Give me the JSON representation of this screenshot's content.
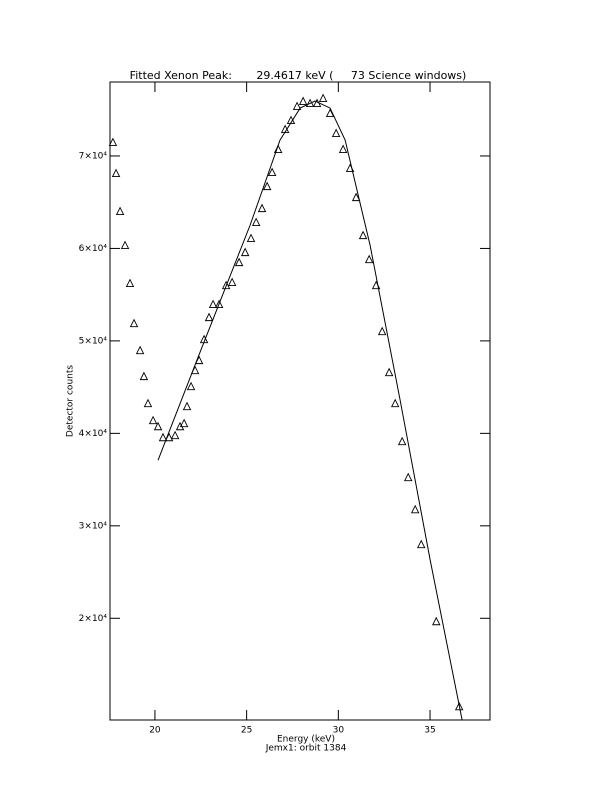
{
  "chart_data": {
    "type": "scatter",
    "title": "Fitted Xenon Peak:       29.4617 keV (     73 Science windows)",
    "xlabel": "Energy (keV)",
    "ylabel": "Detector counts",
    "footer": "Jemx1: orbit 1384",
    "color": "#000000",
    "marker": "triangle",
    "x": [
      17.71,
      17.88,
      18.1,
      18.37,
      18.64,
      18.86,
      19.19,
      19.4,
      19.62,
      19.9,
      20.17,
      20.44,
      20.77,
      21.1,
      21.37,
      21.59,
      21.75,
      21.97,
      22.19,
      22.41,
      22.68,
      22.95,
      23.17,
      23.5,
      23.88,
      24.21,
      24.59,
      24.92,
      25.24,
      25.52,
      25.84,
      26.12,
      26.39,
      26.72,
      27.1,
      27.42,
      27.75,
      28.08,
      28.46,
      28.84,
      29.17,
      29.55,
      29.88,
      30.26,
      30.64,
      30.97,
      31.35,
      31.68,
      32.06,
      32.39,
      32.77,
      33.1,
      33.48,
      33.81,
      34.19,
      34.52,
      35.34,
      36.59
    ],
    "values": [
      71500,
      68150,
      64040,
      60360,
      56250,
      51920,
      49000,
      46190,
      43260,
      41420,
      40770,
      39580,
      39580,
      39800,
      40770,
      41100,
      42940,
      45100,
      46830,
      47920,
      50190,
      52570,
      53980,
      53980,
      56030,
      56360,
      58520,
      59600,
      61120,
      62850,
      64360,
      66740,
      68260,
      70750,
      72910,
      73880,
      75400,
      75940,
      75720,
      75720,
      76260,
      74640,
      72480,
      70750,
      68690,
      65550,
      61440,
      58840,
      56030,
      51050,
      46620,
      43260,
      39150,
      35260,
      31790,
      28010,
      19680,
      10480
    ],
    "fit": {
      "color": "#000000",
      "x": [
        20.17,
        22.46,
        25.19,
        26.82,
        27.92,
        28.73,
        29.55,
        30.37,
        31.73,
        33.37,
        35.01,
        36.75
      ],
      "values": [
        37100,
        48780,
        62520,
        71720,
        75180,
        75940,
        75180,
        71720,
        60360,
        43590,
        26280,
        9000
      ]
    },
    "xlim": [
      17.55,
      38.27
    ],
    "ylim": [
      9000,
      78000
    ],
    "xticks": [
      20,
      25,
      30,
      35
    ],
    "yticks": [
      {
        "value": 20000,
        "label": "2×10⁴"
      },
      {
        "value": 30000,
        "label": "3×10⁴"
      },
      {
        "value": 40000,
        "label": "4×10⁴"
      },
      {
        "value": 50000,
        "label": "5×10⁴"
      },
      {
        "value": 60000,
        "label": "6×10⁴"
      },
      {
        "value": 70000,
        "label": "7×10⁴"
      }
    ]
  }
}
